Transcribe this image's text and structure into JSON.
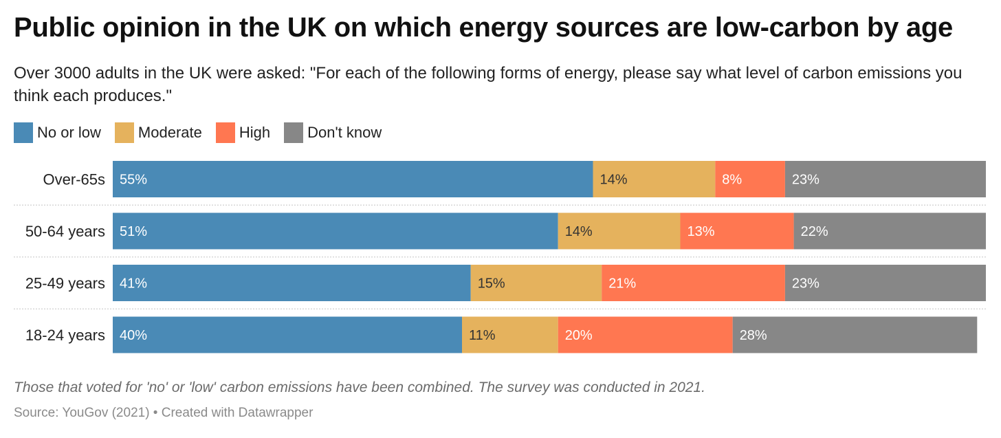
{
  "title": "Public opinion in the UK on which energy sources are low-carbon by age",
  "subtitle": "Over 3000 adults in the UK were asked: \"For each of the following forms of energy, please say what level of carbon emissions you think each produces.\"",
  "note": "Those that voted for 'no' or 'low' carbon emissions have been combined. The survey was conducted in 2021.",
  "source": "Source: YouGov (2021) • Created with Datawrapper",
  "legend": [
    {
      "label": "No or low",
      "color": "#4a8ab6"
    },
    {
      "label": "Moderate",
      "color": "#e5b25d"
    },
    {
      "label": "High",
      "color": "#ff7751"
    },
    {
      "label": "Don't know",
      "color": "#878787"
    }
  ],
  "chart_data": {
    "type": "bar",
    "orientation": "horizontal",
    "stacked": true,
    "unit": "%",
    "xlim": [
      0,
      100
    ],
    "categories": [
      "Over-65s",
      "50-64 years",
      "25-49 years",
      "18-24 years"
    ],
    "series": [
      {
        "name": "No or low",
        "color": "#4a8ab6",
        "label_color": "#ffffff",
        "values": [
          55,
          51,
          41,
          40
        ]
      },
      {
        "name": "Moderate",
        "color": "#e5b25d",
        "label_color": "#333333",
        "values": [
          14,
          14,
          15,
          11
        ]
      },
      {
        "name": "High",
        "color": "#ff7751",
        "label_color": "#ffffff",
        "values": [
          8,
          13,
          21,
          20
        ]
      },
      {
        "name": "Don't know",
        "color": "#878787",
        "label_color": "#ffffff",
        "values": [
          23,
          22,
          23,
          28
        ]
      }
    ],
    "grid": false,
    "legend_position": "top-left"
  }
}
